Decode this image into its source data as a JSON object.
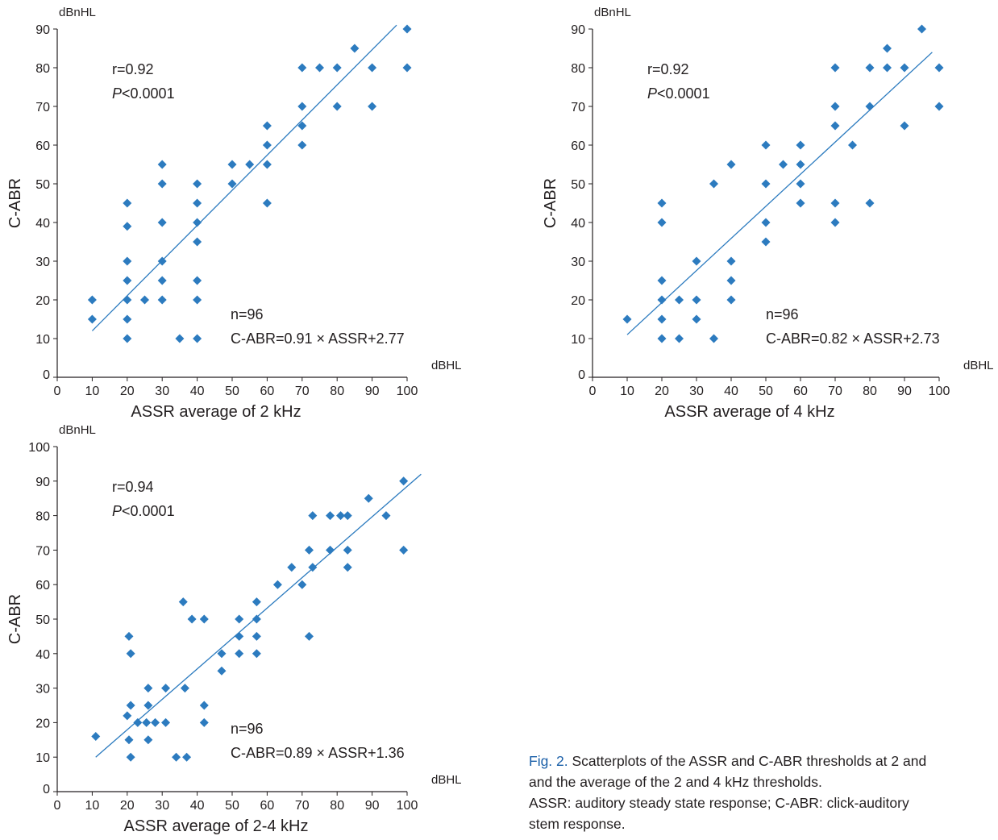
{
  "chart_data": [
    {
      "type": "scatter",
      "ylabel": "C-ABR",
      "y_unit": "dBnHL",
      "xlabel": "ASSR average of 2 kHz",
      "x_unit": "dBHL",
      "xlim": [
        0,
        100
      ],
      "ylim": [
        0,
        90
      ],
      "xticks": [
        0,
        10,
        20,
        30,
        40,
        50,
        60,
        70,
        80,
        90,
        100
      ],
      "yticks": [
        0,
        10,
        20,
        30,
        40,
        50,
        60,
        70,
        80,
        90
      ],
      "stats_r": "r=0.92",
      "stats_p_italic": "P",
      "stats_p_rest": "<0.0001",
      "stats_n": "n=96",
      "equation": "C-ABR=0.91 × ASSR+2.77",
      "line": [
        [
          10,
          12
        ],
        [
          97,
          91
        ]
      ],
      "grid": false,
      "color": "#2c7bbf",
      "points": [
        [
          10,
          20
        ],
        [
          10,
          15
        ],
        [
          20,
          45
        ],
        [
          20,
          39
        ],
        [
          20,
          30
        ],
        [
          20,
          25
        ],
        [
          20,
          20
        ],
        [
          20,
          15
        ],
        [
          20,
          10
        ],
        [
          25,
          20
        ],
        [
          30,
          55
        ],
        [
          30,
          50
        ],
        [
          30,
          40
        ],
        [
          30,
          30
        ],
        [
          30,
          25
        ],
        [
          30,
          20
        ],
        [
          35,
          10
        ],
        [
          40,
          50
        ],
        [
          40,
          45
        ],
        [
          40,
          40
        ],
        [
          40,
          35
        ],
        [
          40,
          25
        ],
        [
          40,
          20
        ],
        [
          40,
          10
        ],
        [
          50,
          55
        ],
        [
          50,
          50
        ],
        [
          55,
          55
        ],
        [
          60,
          65
        ],
        [
          60,
          60
        ],
        [
          60,
          55
        ],
        [
          60,
          45
        ],
        [
          70,
          80
        ],
        [
          70,
          70
        ],
        [
          70,
          65
        ],
        [
          70,
          60
        ],
        [
          75,
          80
        ],
        [
          80,
          80
        ],
        [
          80,
          70
        ],
        [
          85,
          85
        ],
        [
          90,
          80
        ],
        [
          90,
          70
        ],
        [
          100,
          90
        ],
        [
          100,
          80
        ]
      ]
    },
    {
      "type": "scatter",
      "ylabel": "C-ABR",
      "y_unit": "dBnHL",
      "xlabel": "ASSR average of 4 kHz",
      "x_unit": "dBHL",
      "xlim": [
        0,
        100
      ],
      "ylim": [
        0,
        90
      ],
      "xticks": [
        0,
        10,
        20,
        30,
        40,
        50,
        60,
        70,
        80,
        90,
        100
      ],
      "yticks": [
        0,
        10,
        20,
        30,
        40,
        50,
        60,
        70,
        80,
        90
      ],
      "stats_r": "r=0.92",
      "stats_p_italic": "P",
      "stats_p_rest": "<0.0001",
      "stats_n": "n=96",
      "equation": "C-ABR=0.82 × ASSR+2.73",
      "line": [
        [
          10,
          11
        ],
        [
          98,
          84
        ]
      ],
      "grid": false,
      "color": "#2c7bbf",
      "points": [
        [
          10,
          15
        ],
        [
          20,
          45
        ],
        [
          20,
          40
        ],
        [
          20,
          25
        ],
        [
          20,
          20
        ],
        [
          20,
          15
        ],
        [
          20,
          10
        ],
        [
          25,
          20
        ],
        [
          25,
          10
        ],
        [
          30,
          30
        ],
        [
          30,
          20
        ],
        [
          30,
          15
        ],
        [
          35,
          50
        ],
        [
          35,
          10
        ],
        [
          40,
          55
        ],
        [
          40,
          30
        ],
        [
          40,
          25
        ],
        [
          40,
          20
        ],
        [
          50,
          60
        ],
        [
          50,
          50
        ],
        [
          50,
          40
        ],
        [
          50,
          35
        ],
        [
          55,
          55
        ],
        [
          60,
          60
        ],
        [
          60,
          55
        ],
        [
          60,
          50
        ],
        [
          60,
          45
        ],
        [
          70,
          80
        ],
        [
          70,
          70
        ],
        [
          70,
          65
        ],
        [
          70,
          45
        ],
        [
          70,
          40
        ],
        [
          75,
          60
        ],
        [
          80,
          80
        ],
        [
          80,
          70
        ],
        [
          80,
          45
        ],
        [
          85,
          85
        ],
        [
          85,
          80
        ],
        [
          90,
          80
        ],
        [
          90,
          65
        ],
        [
          95,
          90
        ],
        [
          100,
          80
        ],
        [
          100,
          70
        ]
      ]
    },
    {
      "type": "scatter",
      "ylabel": "C-ABR",
      "y_unit": "dBnHL",
      "xlabel": "ASSR average of 2-4 kHz",
      "x_unit": "dBHL",
      "xlim": [
        0,
        100
      ],
      "ylim": [
        0,
        100
      ],
      "xticks": [
        0,
        10,
        20,
        30,
        40,
        50,
        60,
        70,
        80,
        90,
        100
      ],
      "yticks": [
        0,
        10,
        20,
        30,
        40,
        50,
        60,
        70,
        80,
        90,
        100
      ],
      "stats_r": "r=0.94",
      "stats_p_italic": "P",
      "stats_p_rest": "<0.0001",
      "stats_n": "n=96",
      "equation": "C-ABR=0.89 × ASSR+1.36",
      "line": [
        [
          11,
          10
        ],
        [
          104,
          92
        ]
      ],
      "grid": false,
      "color": "#2c7bbf",
      "points": [
        [
          11,
          16
        ],
        [
          20,
          22
        ],
        [
          20.5,
          45
        ],
        [
          20.5,
          15
        ],
        [
          21,
          40
        ],
        [
          21,
          25
        ],
        [
          21,
          10
        ],
        [
          23,
          20
        ],
        [
          25.5,
          20
        ],
        [
          26,
          30
        ],
        [
          26,
          25
        ],
        [
          26,
          15
        ],
        [
          28,
          20
        ],
        [
          31,
          30
        ],
        [
          31,
          20
        ],
        [
          34,
          10
        ],
        [
          36,
          55
        ],
        [
          36.5,
          30
        ],
        [
          37,
          10
        ],
        [
          38.5,
          50
        ],
        [
          42,
          50
        ],
        [
          42,
          25
        ],
        [
          42,
          20
        ],
        [
          47,
          40
        ],
        [
          47,
          35
        ],
        [
          52,
          50
        ],
        [
          52,
          45
        ],
        [
          52,
          40
        ],
        [
          57,
          55
        ],
        [
          57,
          50
        ],
        [
          57,
          45
        ],
        [
          57,
          40
        ],
        [
          63,
          60
        ],
        [
          67,
          65
        ],
        [
          70,
          60
        ],
        [
          72,
          45
        ],
        [
          72,
          70
        ],
        [
          73,
          80
        ],
        [
          73,
          65
        ],
        [
          78,
          80
        ],
        [
          78,
          70
        ],
        [
          81,
          80
        ],
        [
          83,
          80
        ],
        [
          83,
          70
        ],
        [
          83,
          65
        ],
        [
          89,
          85
        ],
        [
          94,
          80
        ],
        [
          99,
          90
        ],
        [
          99,
          70
        ]
      ]
    }
  ],
  "caption": {
    "fig_label": "Fig. 2.",
    "line1": " Scatterplots of the ASSR and C-ABR thresholds at 2 and",
    "line2": "and the average of the 2 and 4 kHz thresholds.",
    "line3": "ASSR: auditory steady state response; C-ABR: click-auditory",
    "line4": "stem response."
  }
}
